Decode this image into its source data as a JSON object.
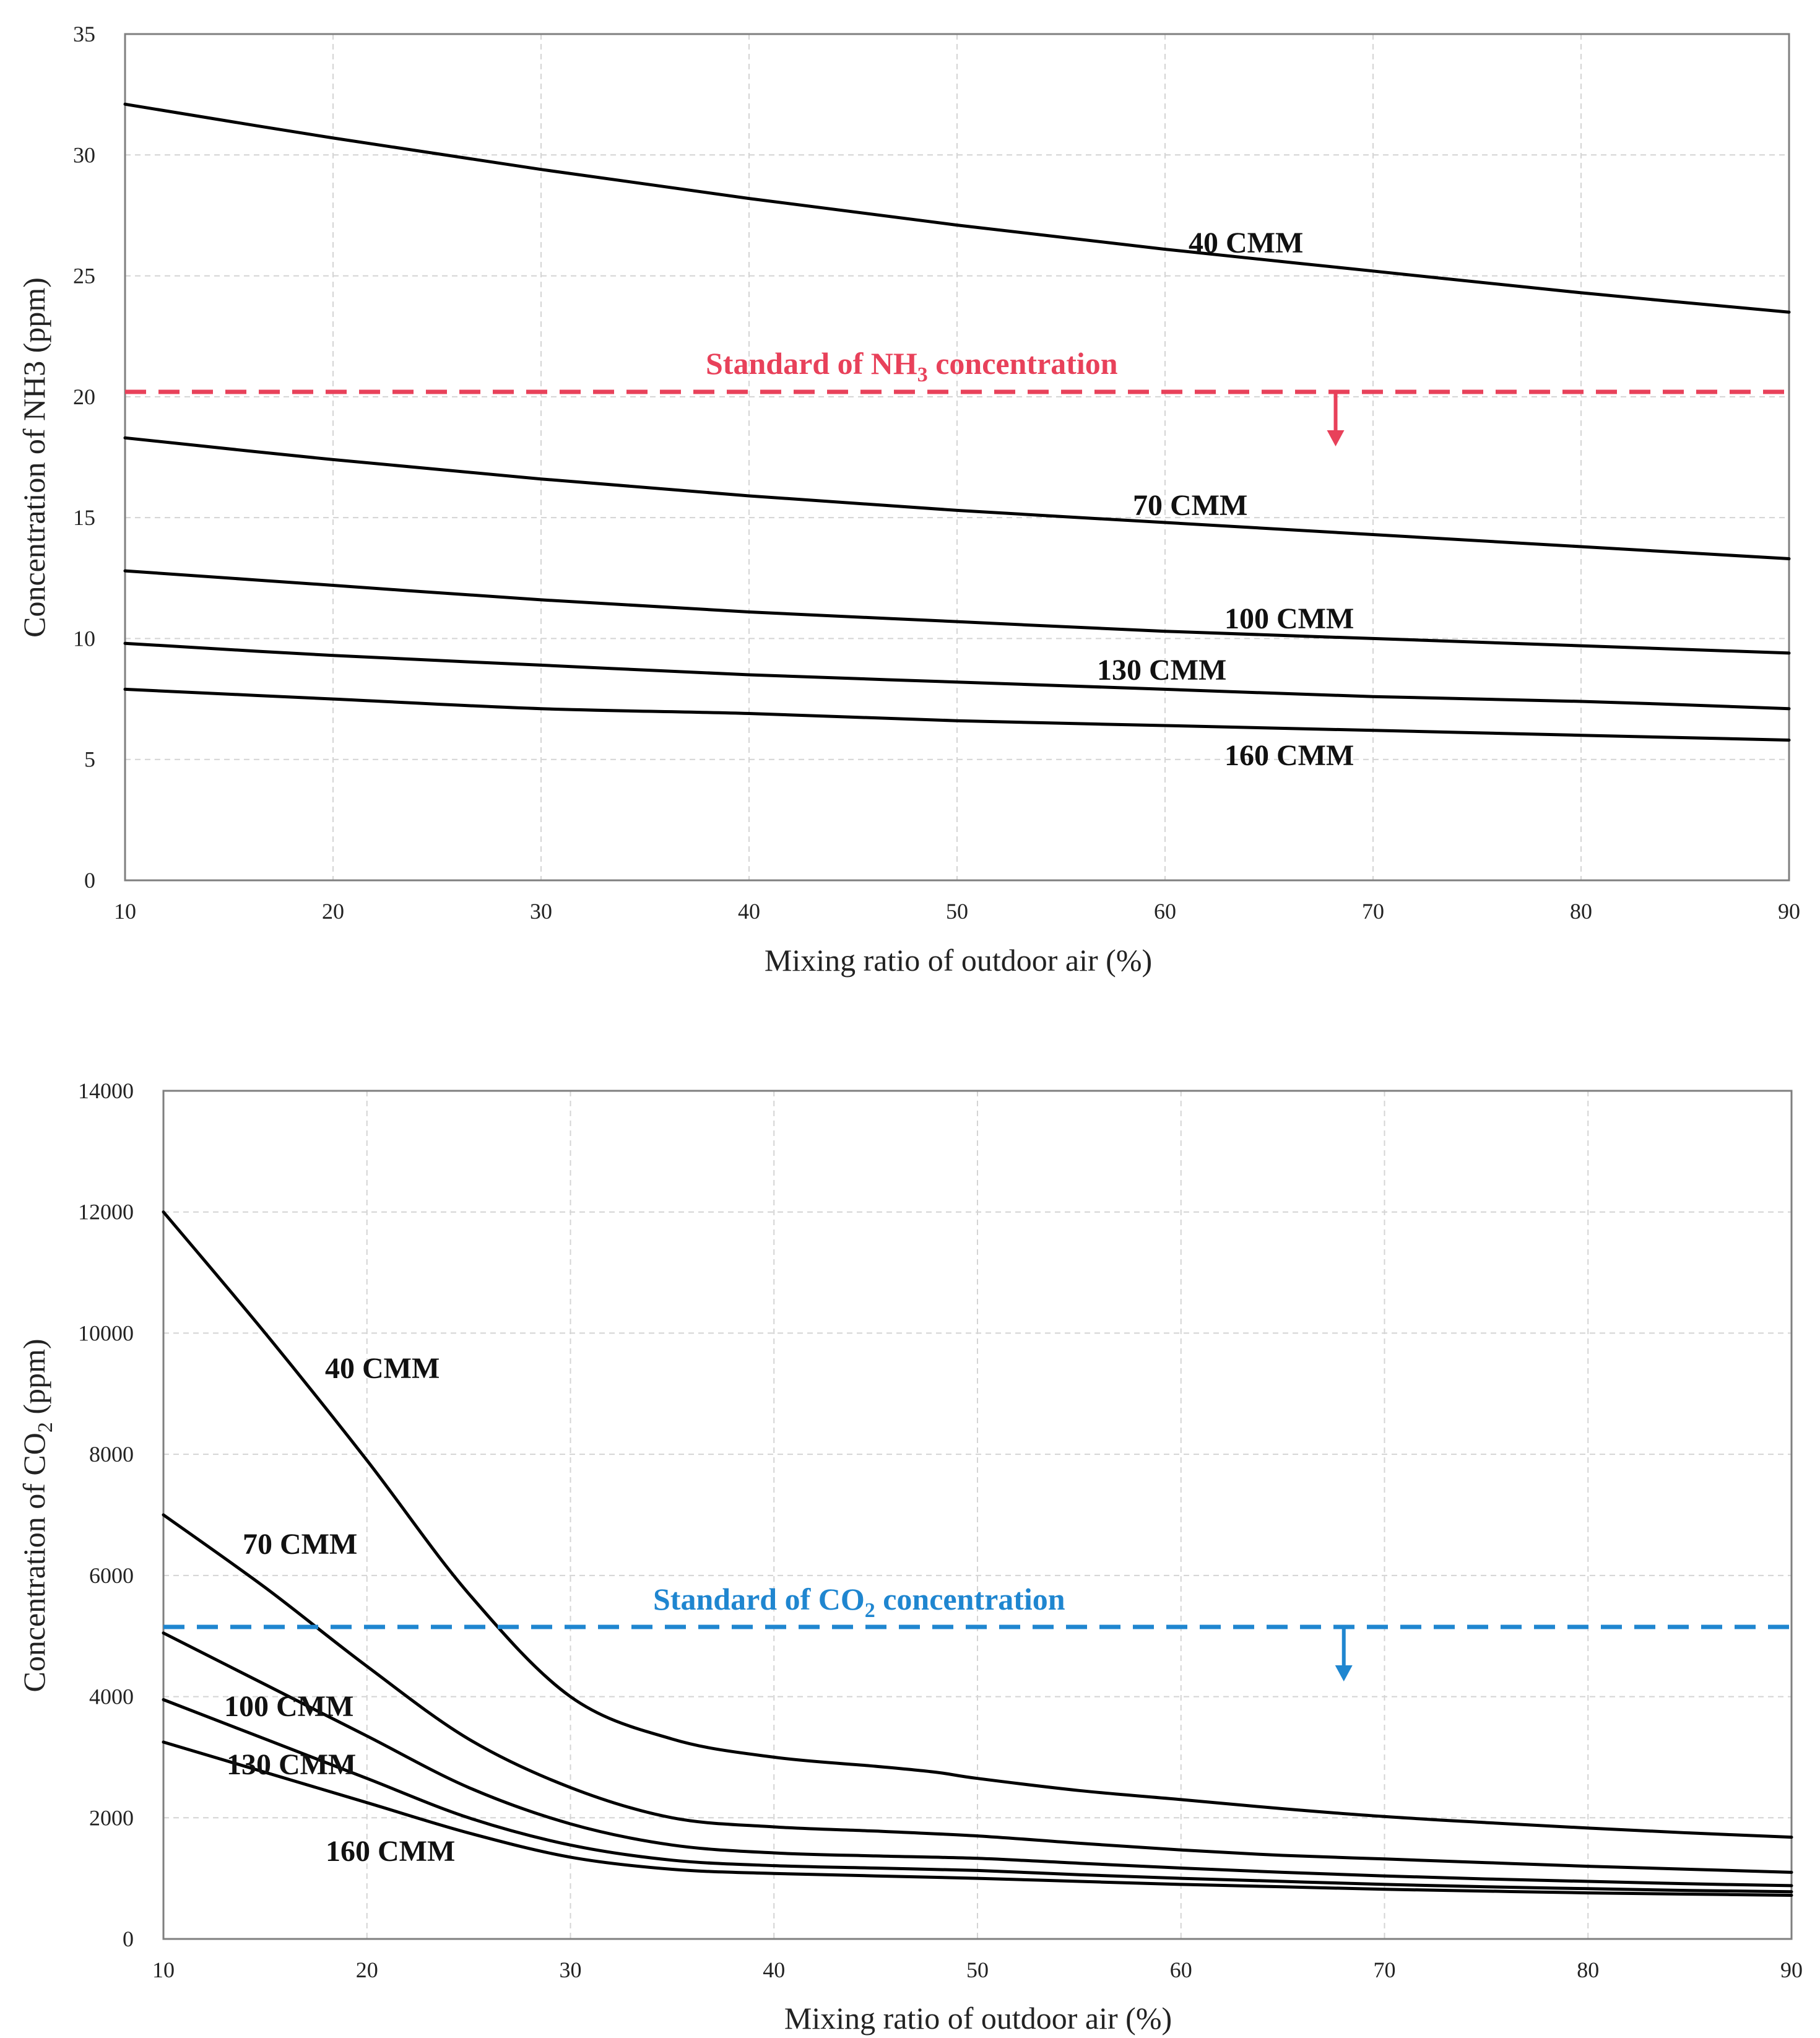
{
  "chart_data": [
    {
      "type": "line",
      "title": "",
      "xlabel": "Mixing ratio of outdoor air (%)",
      "ylabel": "Concentration of NH3 (ppm)",
      "xlim": [
        10,
        90
      ],
      "ylim": [
        0,
        35
      ],
      "x_ticks": [
        10,
        20,
        30,
        40,
        50,
        60,
        70,
        80,
        90
      ],
      "y_ticks": [
        0,
        5,
        10,
        15,
        20,
        25,
        30,
        35
      ],
      "grid": true,
      "x": [
        10,
        20,
        30,
        40,
        50,
        60,
        70,
        80,
        90
      ],
      "series": [
        {
          "name": "40 CMM",
          "values": [
            32.1,
            30.7,
            29.4,
            28.2,
            27.1,
            26.1,
            25.2,
            24.3,
            23.5
          ]
        },
        {
          "name": "70 CMM",
          "values": [
            18.3,
            17.4,
            16.6,
            15.9,
            15.3,
            14.8,
            14.3,
            13.8,
            13.3
          ]
        },
        {
          "name": "100 CMM",
          "values": [
            12.8,
            12.2,
            11.6,
            11.1,
            10.7,
            10.3,
            10.0,
            9.7,
            9.4
          ]
        },
        {
          "name": "130 CMM",
          "values": [
            9.8,
            9.3,
            8.9,
            8.5,
            8.2,
            7.9,
            7.6,
            7.4,
            7.1
          ]
        },
        {
          "name": "160 CMM",
          "values": [
            7.9,
            7.5,
            7.1,
            6.9,
            6.6,
            6.4,
            6.2,
            6.0,
            5.8
          ]
        }
      ],
      "threshold": {
        "label_main": "Standard of NH",
        "label_sub": "3",
        "label_end": " concentration",
        "value": 20.2,
        "arrow_x": 68.2,
        "color": "#e8415a"
      }
    },
    {
      "type": "line",
      "title": "",
      "xlabel": "Mixing ratio of outdoor air (%)",
      "ylabel_main": "Concentration of CO",
      "ylabel_sub": "2",
      "ylabel_end": " (ppm)",
      "xlim": [
        10,
        90
      ],
      "ylim": [
        0,
        14000
      ],
      "x_ticks": [
        10,
        20,
        30,
        40,
        50,
        60,
        70,
        80,
        90
      ],
      "y_ticks": [
        0,
        2000,
        4000,
        6000,
        8000,
        10000,
        12000,
        14000
      ],
      "grid": true,
      "series": [
        {
          "name": "40 CMM",
          "x": [
            10,
            15,
            20,
            25,
            30,
            35,
            40,
            45,
            48,
            50,
            55,
            60,
            65,
            70,
            75,
            80,
            85,
            90
          ],
          "values": [
            12000,
            10000,
            7900,
            5700,
            4000,
            3300,
            3000,
            2850,
            2750,
            2650,
            2450,
            2300,
            2150,
            2020,
            1920,
            1830,
            1750,
            1680
          ]
        },
        {
          "name": "70 CMM",
          "x": [
            10,
            15,
            20,
            25,
            30,
            35,
            40,
            45,
            50,
            55,
            60,
            65,
            70,
            75,
            80,
            85,
            90
          ],
          "values": [
            7000,
            5800,
            4500,
            3300,
            2500,
            2000,
            1850,
            1780,
            1700,
            1580,
            1470,
            1380,
            1320,
            1260,
            1200,
            1150,
            1100
          ]
        },
        {
          "name": "100 CMM",
          "x": [
            10,
            15,
            20,
            25,
            30,
            35,
            40,
            45,
            50,
            55,
            60,
            65,
            70,
            75,
            80,
            85,
            90
          ],
          "values": [
            5050,
            4200,
            3350,
            2500,
            1900,
            1550,
            1420,
            1370,
            1330,
            1250,
            1170,
            1100,
            1040,
            990,
            950,
            910,
            880
          ]
        },
        {
          "name": "130 CMM",
          "x": [
            10,
            15,
            20,
            25,
            30,
            35,
            40,
            45,
            50,
            55,
            60,
            65,
            70,
            75,
            80,
            85,
            90
          ],
          "values": [
            3950,
            3300,
            2650,
            2000,
            1550,
            1300,
            1210,
            1170,
            1130,
            1060,
            1000,
            950,
            900,
            860,
            830,
            800,
            780
          ]
        },
        {
          "name": "160 CMM",
          "x": [
            10,
            15,
            20,
            25,
            30,
            35,
            40,
            45,
            50,
            55,
            60,
            65,
            70,
            75,
            80,
            85,
            90
          ],
          "values": [
            3250,
            2750,
            2250,
            1750,
            1350,
            1150,
            1080,
            1040,
            1000,
            950,
            900,
            860,
            820,
            790,
            760,
            740,
            720
          ]
        }
      ],
      "threshold": {
        "label_main": "Standard of CO",
        "label_sub": "2",
        "label_end": " concentration",
        "value": 5150,
        "arrow_x": 68,
        "color": "#1f86d0"
      }
    }
  ]
}
